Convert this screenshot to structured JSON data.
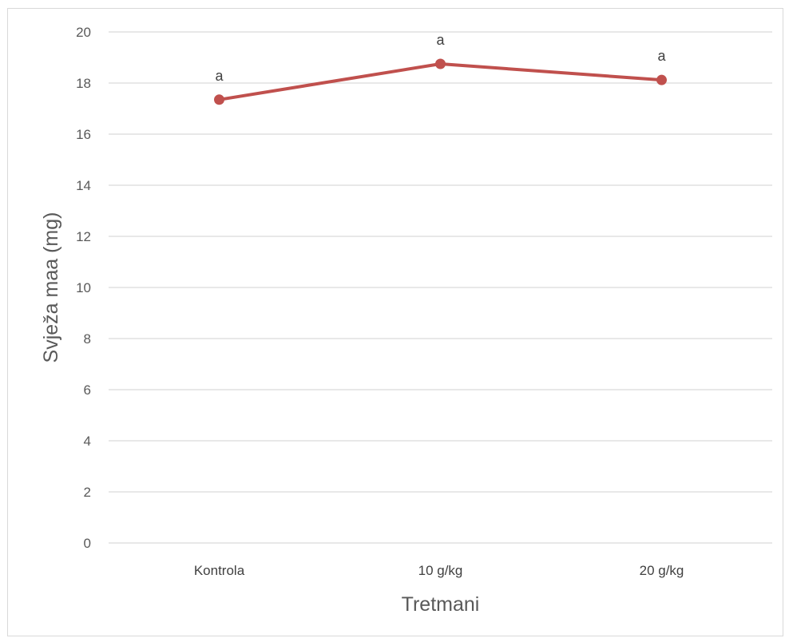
{
  "chart_data": {
    "type": "line",
    "title": "",
    "xlabel": "Tretmani",
    "ylabel": "Svježa maa (mg)",
    "categories": [
      "Kontrola",
      "10 g/kg",
      "20 g/kg"
    ],
    "series": [
      {
        "values": [
          17.35,
          18.75,
          18.12
        ],
        "color": "#c0504d",
        "data_labels": [
          "a",
          "a",
          "a"
        ]
      }
    ],
    "ylim": [
      0,
      20
    ],
    "yticks": [
      "0",
      "2",
      "4",
      "6",
      "8",
      "10",
      "12",
      "14",
      "16",
      "18",
      "20"
    ],
    "grid": true,
    "legend": "none"
  }
}
